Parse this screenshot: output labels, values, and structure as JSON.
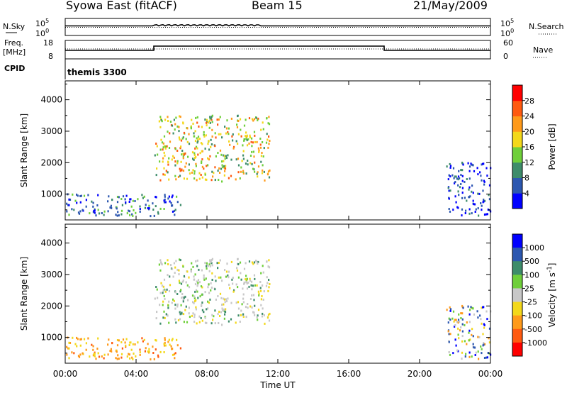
{
  "header": {
    "title": "Syowa East (fitACF)",
    "beam": "Beam 15",
    "date": "21/May/2009"
  },
  "status_panels": {
    "nsky_label": "N.Sky",
    "nsearch_label": "N.Search",
    "freq_label_1": "Freq.",
    "freq_label_2": "[MHz]",
    "nave_label": "Nave",
    "cpid_label": "CPID",
    "cpid_value": "themis 3300",
    "noise_ticks_left": [
      "10^5",
      "10^0"
    ],
    "noise_ticks_right": [
      "10^5",
      "10^0"
    ],
    "freq_ticks": [
      "18",
      "8"
    ],
    "nave_ticks": [
      "60",
      "0"
    ],
    "freq_steps_hours": [
      0,
      5,
      18,
      24
    ],
    "freq_levels": [
      "low",
      "high",
      "low"
    ]
  },
  "chart_data": [
    {
      "type": "heatmap",
      "name": "power",
      "ylabel": "Slant Range [km]",
      "ylim": [
        180,
        4600
      ],
      "yticks": [
        "1000",
        "2000",
        "3000",
        "4000"
      ],
      "ytick_values": [
        1000,
        2000,
        3000,
        4000
      ],
      "xlim": [
        0,
        24
      ],
      "colorbar": {
        "label": "Power [dB]",
        "ticks": [
          "4",
          "8",
          "12",
          "16",
          "20",
          "24",
          "28"
        ],
        "colors": [
          "#0000ff",
          "#2c57b0",
          "#3d8c6a",
          "#6fcf3a",
          "#f3d81a",
          "#ff9a1a",
          "#ff5a10",
          "#ff0000"
        ]
      },
      "echo_regions": [
        {
          "t": [
            0.0,
            6.5
          ],
          "r": [
            300,
            1000
          ],
          "level": "low-mid"
        },
        {
          "t": [
            5.0,
            11.5
          ],
          "r": [
            1400,
            3500
          ],
          "level": "mid-high"
        },
        {
          "t": [
            21.5,
            24.0
          ],
          "r": [
            300,
            2000
          ],
          "level": "low"
        }
      ]
    },
    {
      "type": "heatmap",
      "name": "velocity",
      "ylabel": "Slant Range [km]",
      "ylim": [
        180,
        4600
      ],
      "yticks": [
        "1000",
        "2000",
        "3000",
        "4000"
      ],
      "ytick_values": [
        1000,
        2000,
        3000,
        4000
      ],
      "xlim": [
        0,
        24
      ],
      "xlabel": "Time UT",
      "xticks": [
        "00:00",
        "04:00",
        "08:00",
        "12:00",
        "16:00",
        "20:00",
        "00:00"
      ],
      "xtick_values": [
        0,
        4,
        8,
        12,
        16,
        20,
        24
      ],
      "colorbar": {
        "label": "Velocity [m s^-1]",
        "ticks": [
          "1000",
          "500",
          "100",
          "25",
          "-25",
          "-100",
          "-500",
          "-1000"
        ],
        "colors": [
          "#0000ff",
          "#2c57b0",
          "#3d8c6a",
          "#6fcf3a",
          "#c8c8c8",
          "#f3d81a",
          "#ff9a1a",
          "#ff5a10",
          "#ff0000"
        ]
      },
      "echo_regions": [
        {
          "t": [
            0.0,
            6.5
          ],
          "r": [
            300,
            1000
          ],
          "level": "negative"
        },
        {
          "t": [
            5.0,
            11.5
          ],
          "r": [
            1400,
            3500
          ],
          "level": "near-zero"
        },
        {
          "t": [
            21.5,
            24.0
          ],
          "r": [
            300,
            2000
          ],
          "level": "mixed"
        }
      ]
    }
  ]
}
